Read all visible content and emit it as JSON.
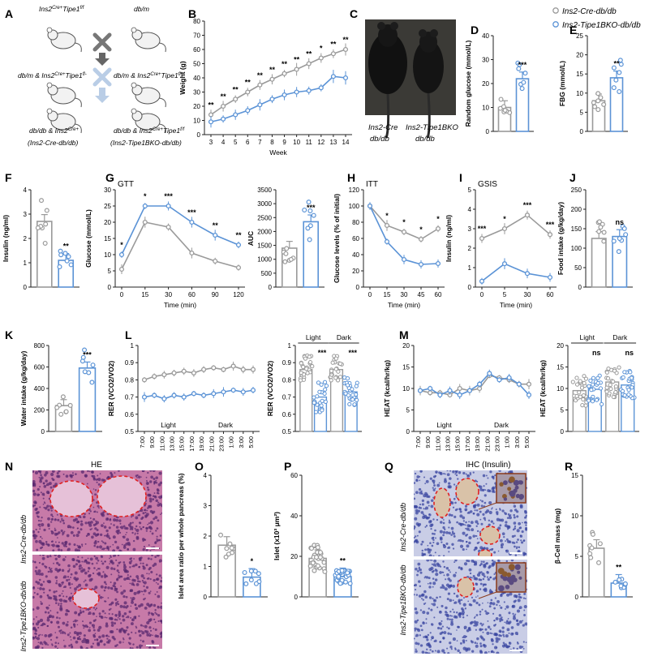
{
  "legend": {
    "grey_label": "Ins2-Cre-db/db",
    "blue_label": "Ins2-Tipe1BKO-db/db"
  },
  "colors": {
    "grey": "#9a9a9a",
    "blue": "#5b93d6",
    "red": "#e02020",
    "tissue_he": "#c77aa8",
    "tissue_ihc": "#c9cde6"
  },
  "panels": {
    "A": {
      "letter": "A",
      "col1": [
        "Ins2",
        "Tipe1",
        "db/m & Ins2",
        "Tipe1",
        "db/db & Ins2",
        "(Ins2-Cre-db/db)"
      ],
      "col1_sup": [
        "Cre+",
        "f/f",
        "Cre+",
        "fl-",
        "Cre+"
      ],
      "col2": [
        "db/m",
        "db/m & Ins2",
        "Tipe1",
        "db/db & Ins2",
        "Tipe1",
        "(Ins2-Tipe1BKO-db/db)"
      ],
      "col2_sup": [
        "Cre+",
        "fl-",
        "Cre+",
        "f/f"
      ]
    },
    "C": {
      "letter": "C",
      "label_left": [
        "Ins2-Cre",
        "db/db"
      ],
      "label_right": [
        "Ins2-Tipe1BKO",
        "db/db"
      ]
    },
    "N": {
      "letter": "N",
      "title": "HE",
      "row_labels": [
        "Ins2-Cre-db/db",
        "Ins2-Tipe1BKO-db/db"
      ]
    },
    "Q": {
      "letter": "Q",
      "title": "IHC (Insulin)",
      "row_labels": [
        "Ins2-Cre-db/db",
        "Ins2-Tipe1BKO-db/db"
      ]
    }
  },
  "chart_data": [
    {
      "id": "B",
      "type": "line",
      "ylabel": "Weight (g)",
      "xlabel": "Week",
      "x": [
        3,
        4,
        5,
        6,
        7,
        8,
        9,
        10,
        11,
        12,
        13,
        14
      ],
      "ylim": [
        0,
        80
      ],
      "yticks": [
        0,
        10,
        20,
        30,
        40,
        50,
        60,
        70,
        80
      ],
      "series": [
        {
          "name": "Ins2-Cre-db/db",
          "color": "grey",
          "values": [
            14,
            20,
            25,
            30,
            35,
            39,
            43,
            46,
            50,
            54,
            57,
            60
          ]
        },
        {
          "name": "Ins2-Tipe1BKO-db/db",
          "color": "blue",
          "values": [
            9,
            11,
            14,
            17,
            21,
            25,
            28,
            30,
            31,
            33,
            41,
            40
          ]
        }
      ],
      "stars": [
        "**",
        "**",
        "**",
        "**",
        "**",
        "**",
        "**",
        "**",
        "**",
        "*",
        "**",
        "**"
      ]
    },
    {
      "id": "D",
      "type": "bar",
      "ylabel": "Random glucose (mmol/L)",
      "ylim": [
        0,
        40
      ],
      "yticks": [
        0,
        10,
        20,
        30,
        40
      ],
      "categories": [
        "Ins2-Cre-db/db",
        "Ins2-Tipe1BKO-db/db"
      ],
      "values": [
        10,
        22
      ],
      "sig": "***"
    },
    {
      "id": "E",
      "type": "bar",
      "ylabel": "FBG (mmol/L)",
      "ylim": [
        0,
        25
      ],
      "yticks": [
        0,
        5,
        10,
        15,
        20,
        25
      ],
      "categories": [
        "Ins2-Cre-db/db",
        "Ins2-Tipe1BKO-db/db"
      ],
      "values": [
        8,
        14
      ],
      "sig": "**"
    },
    {
      "id": "F",
      "type": "bar",
      "ylabel": "Insulin (ng/ml)",
      "ylim": [
        0,
        4
      ],
      "yticks": [
        0,
        1,
        2,
        3,
        4
      ],
      "categories": [
        "Ins2-Cre-db/db",
        "Ins2-Tipe1BKO-db/db"
      ],
      "values": [
        2.7,
        1.1
      ],
      "sig": "**"
    },
    {
      "id": "G",
      "type": "line",
      "title": "GTT",
      "ylabel": "Glucose (mmol/L)",
      "xlabel": "Time (min)",
      "x": [
        0,
        15,
        30,
        60,
        90,
        120
      ],
      "ylim": [
        0,
        30
      ],
      "yticks": [
        0,
        5,
        10,
        15,
        20,
        25,
        30
      ],
      "series": [
        {
          "name": "Ins2-Cre-db/db",
          "color": "grey",
          "values": [
            5.5,
            20,
            18.5,
            10.5,
            8,
            6
          ]
        },
        {
          "name": "Ins2-Tipe1BKO-db/db",
          "color": "blue",
          "values": [
            10,
            25,
            25,
            20,
            16,
            13
          ]
        }
      ],
      "stars": [
        "*",
        "*",
        "***",
        "***",
        "**",
        "**"
      ]
    },
    {
      "id": "G_AUC",
      "type": "bar",
      "ylabel": "AUC",
      "ylim": [
        0,
        3500
      ],
      "yticks": [
        0,
        500,
        1000,
        1500,
        2000,
        2500,
        3000,
        3500
      ],
      "categories": [
        "Ins2-Cre-db/db",
        "Ins2-Tipe1BKO-db/db"
      ],
      "values": [
        1400,
        2350
      ],
      "sig": "***"
    },
    {
      "id": "H",
      "type": "line",
      "title": "ITT",
      "ylabel": "Glucose levels (% of initial)",
      "xlabel": "Time (min)",
      "x": [
        0,
        15,
        30,
        45,
        60
      ],
      "ylim": [
        0,
        120
      ],
      "yticks": [
        0,
        20,
        40,
        60,
        80,
        100,
        120
      ],
      "series": [
        {
          "name": "Ins2-Cre-db/db",
          "color": "grey",
          "values": [
            100,
            76,
            68,
            59,
            72
          ]
        },
        {
          "name": "Ins2-Tipe1BKO-db/db",
          "color": "blue",
          "values": [
            100,
            56,
            34,
            28,
            29
          ]
        }
      ],
      "stars": [
        "",
        "*",
        "*",
        "*",
        "*"
      ]
    },
    {
      "id": "I",
      "type": "line",
      "title": "GSIS",
      "ylabel": "Insulin (ng/ml)",
      "xlabel": "Time (min)",
      "x": [
        0,
        5,
        30,
        60
      ],
      "ylim": [
        0,
        5
      ],
      "yticks": [
        0,
        1,
        2,
        3,
        4,
        5
      ],
      "series": [
        {
          "name": "Ins2-Cre-db/db",
          "color": "grey",
          "values": [
            2.5,
            3.0,
            3.7,
            2.7
          ]
        },
        {
          "name": "Ins2-Tipe1BKO-db/db",
          "color": "blue",
          "values": [
            0.3,
            1.2,
            0.7,
            0.5
          ]
        }
      ],
      "stars": [
        "***",
        "*",
        "***",
        "***"
      ]
    },
    {
      "id": "J",
      "type": "bar",
      "ylabel": "Food intake (g/kg/day)",
      "ylim": [
        0,
        250
      ],
      "yticks": [
        0,
        50,
        100,
        150,
        200,
        250
      ],
      "categories": [
        "Ins2-Cre-db/db",
        "Ins2-Tipe1BKO-db/db"
      ],
      "values": [
        125,
        130
      ],
      "sig": "ns"
    },
    {
      "id": "K",
      "type": "bar",
      "ylabel": "Water intake (g/kg/day)",
      "ylim": [
        0,
        800
      ],
      "yticks": [
        0,
        200,
        400,
        600,
        800
      ],
      "categories": [
        "Ins2-Cre-db/db",
        "Ins2-Tipe1BKO-db/db"
      ],
      "values": [
        240,
        590
      ],
      "sig": "***"
    },
    {
      "id": "L",
      "type": "line",
      "ylabel": "RER (VCO2/VO2)",
      "ylim": [
        0.5,
        1.0
      ],
      "yticks": [
        0.5,
        0.6,
        0.7,
        0.8,
        0.9,
        1.0
      ],
      "x": [
        "7:00",
        "9:00",
        "11:00",
        "13:00",
        "15:00",
        "17:00",
        "19:00",
        "21:00",
        "23:00",
        "1:00",
        "3:00",
        "5:00"
      ],
      "phase_labels": [
        "Light",
        "Dark"
      ],
      "series": [
        {
          "name": "Ins2-Cre-db/db",
          "color": "grey",
          "values": [
            0.8,
            0.82,
            0.83,
            0.84,
            0.85,
            0.84,
            0.86,
            0.87,
            0.86,
            0.88,
            0.86,
            0.86
          ]
        },
        {
          "name": "Ins2-Tipe1BKO-db/db",
          "color": "blue",
          "values": [
            0.7,
            0.71,
            0.69,
            0.71,
            0.7,
            0.72,
            0.71,
            0.72,
            0.73,
            0.74,
            0.73,
            0.74
          ]
        }
      ]
    },
    {
      "id": "L_bar",
      "type": "bar",
      "ylabel": "RER (VCO2/VO2)",
      "ylim": [
        0.5,
        1.0
      ],
      "yticks": [
        0.5,
        0.6,
        0.7,
        0.8,
        0.9,
        1.0
      ],
      "groups": [
        "Light",
        "Dark"
      ],
      "values": [
        [
          0.86,
          0.7
        ],
        [
          0.86,
          0.73
        ]
      ],
      "sig": [
        "***",
        "***"
      ]
    },
    {
      "id": "M",
      "type": "line",
      "ylabel": "HEAT (kcal/hr/kg)",
      "ylim": [
        0,
        20
      ],
      "yticks": [
        0,
        5,
        10,
        15,
        20
      ],
      "x": [
        "7:00",
        "9:00",
        "11:00",
        "13:00",
        "15:00",
        "17:00",
        "19:00",
        "21:00",
        "23:00",
        "1:00",
        "3:00",
        "5:00"
      ],
      "phase_labels": [
        "Light",
        "Dark"
      ],
      "series": [
        {
          "name": "Ins2-Cre-db/db",
          "color": "grey",
          "values": [
            9.5,
            9.0,
            9.0,
            8.5,
            10.0,
            9.5,
            10.0,
            13.0,
            12.5,
            12.0,
            11.0,
            11.0
          ]
        },
        {
          "name": "Ins2-Tipe1BKO-db/db",
          "color": "blue",
          "values": [
            9.5,
            10.0,
            8.5,
            9.5,
            8.5,
            9.5,
            11.0,
            13.5,
            12.0,
            12.5,
            11.0,
            8.5
          ]
        }
      ]
    },
    {
      "id": "M_bar",
      "type": "bar",
      "ylabel": "HEAT (kcal/hr/kg)",
      "ylim": [
        0,
        20
      ],
      "yticks": [
        0,
        5,
        10,
        15,
        20
      ],
      "groups": [
        "Light",
        "Dark"
      ],
      "values": [
        [
          9.5,
          9.8
        ],
        [
          11.5,
          10.8
        ]
      ],
      "sig": [
        "ns",
        "ns"
      ]
    },
    {
      "id": "O",
      "type": "bar",
      "ylabel": "Islet area ratio per whole pancreas (%)",
      "ylim": [
        0,
        4
      ],
      "yticks": [
        0,
        1,
        2,
        3,
        4
      ],
      "categories": [
        "Ins2-Cre-db/db",
        "Ins2-Tipe1BKO-db/db"
      ],
      "values": [
        1.7,
        0.65
      ],
      "sig": "*"
    },
    {
      "id": "P",
      "type": "bar",
      "ylabel": "Islet (x10³ μm²)",
      "ylim": [
        0,
        60
      ],
      "yticks": [
        0,
        20,
        40,
        60
      ],
      "categories": [
        "Ins2-Cre-db/db",
        "Ins2-Tipe1BKO-db/db"
      ],
      "values": [
        19,
        10
      ],
      "sig": "**"
    },
    {
      "id": "R",
      "type": "bar",
      "ylabel": "β-Cell mass (mg)",
      "ylim": [
        0,
        15
      ],
      "yticks": [
        0,
        5,
        10,
        15
      ],
      "categories": [
        "Ins2-Cre-db/db",
        "Ins2-Tipe1BKO-db/db"
      ],
      "values": [
        6,
        1.7
      ],
      "sig": "**"
    }
  ]
}
